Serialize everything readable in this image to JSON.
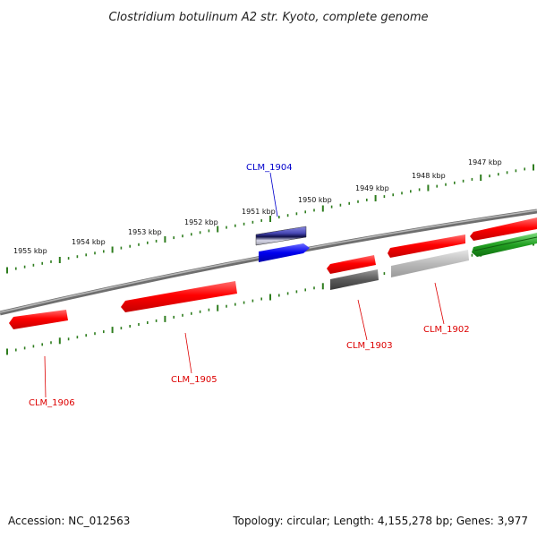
{
  "title": "Clostridium botulinum A2 str. Kyoto, complete genome",
  "footer": {
    "accession": "Accession: NC_012563",
    "summary": "Topology: circular; Length: 4,155,278 bp; Genes: 3,977"
  },
  "scale_labels": [
    "1955 kbp",
    "1954 kbp",
    "1953 kbp",
    "1952 kbp",
    "1951 kbp",
    "1950 kbp",
    "1949 kbp",
    "1948 kbp",
    "1947 kbp"
  ],
  "gene_labels": {
    "g1904": "CLM_1904",
    "g1905": "CLM_1905",
    "g1906": "CLM_1906",
    "g1903": "CLM_1903",
    "g1902": "CLM_1902"
  },
  "colors": {
    "backbone": "#888888",
    "ticks": "#2e7d1e",
    "cds_red": "#ff0000",
    "cds_blue": "#0000ee",
    "cds_green": "#33aa33",
    "cds_grey": "#666666",
    "cds_light": "#bbbbbb",
    "label_blue": "#0000cc",
    "label_red": "#dd0000"
  }
}
